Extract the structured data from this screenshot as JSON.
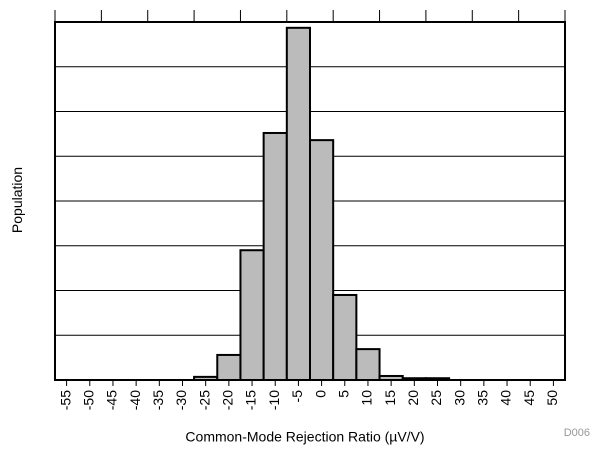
{
  "chart_data": {
    "type": "histogram",
    "x_label": "Common-Mode Rejection Ratio (µV/V)",
    "y_label": "Population",
    "code": "D006",
    "bins": [
      -57.5,
      -52.5,
      -47.5,
      -42.5,
      -37.5,
      -32.5,
      -27.5,
      -22.5,
      -17.5,
      -12.5,
      -7.5,
      -2.5,
      2.5,
      7.5,
      12.5,
      17.5,
      22.5,
      27.5,
      32.5,
      37.5,
      42.5,
      47.5,
      52.5
    ],
    "values": [
      0,
      0,
      0,
      0,
      0,
      0,
      0.07,
      0.56,
      2.9,
      5.52,
      7.87,
      5.36,
      1.9,
      0.69,
      0.09,
      0.04,
      0.04,
      0,
      0,
      0,
      0,
      0
    ],
    "color": "#bbbbbb",
    "xlim": [
      -57.5,
      52.5
    ],
    "xticks": [
      -55,
      -50,
      -45,
      -40,
      -35,
      -30,
      -25,
      -20,
      -15,
      -10,
      -5,
      0,
      5,
      10,
      15,
      20,
      25,
      30,
      35,
      40,
      45,
      50
    ],
    "ylim": [
      0,
      8
    ],
    "yticks": [
      0,
      1,
      2,
      3,
      4,
      5,
      6,
      7,
      8
    ],
    "grid": true
  }
}
